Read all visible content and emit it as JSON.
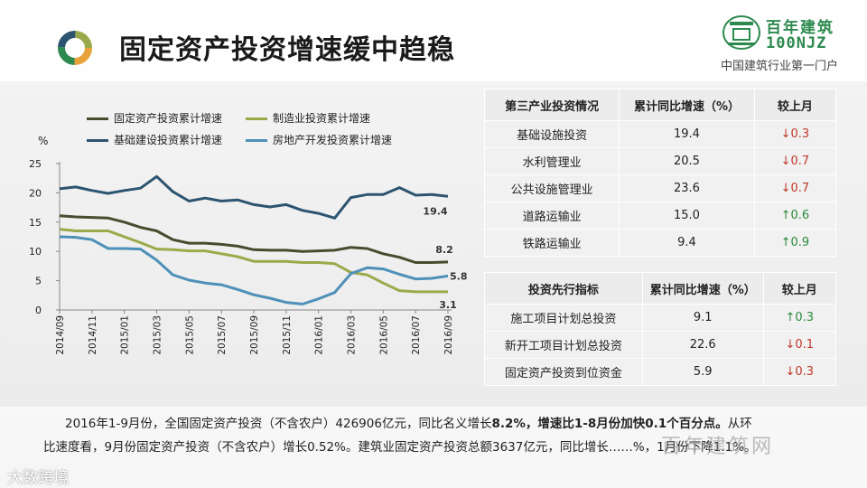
{
  "title": "固定资产投资增速缓中趋稳",
  "brand": {
    "cn": "百年建筑",
    "en": "100NJZ",
    "tagline": "中国建筑行业第一门户"
  },
  "chart_data": {
    "type": "line",
    "ylabel": "%",
    "ylim": [
      0,
      25
    ],
    "yticks": [
      "0",
      "5",
      "10",
      "15",
      "20",
      "25"
    ],
    "x": [
      "2014/09",
      "2014/10",
      "2014/11",
      "2014/12",
      "2015/01",
      "2015/02",
      "2015/03",
      "2015/04",
      "2015/05",
      "2015/06",
      "2015/07",
      "2015/08",
      "2015/09",
      "2015/10",
      "2015/11",
      "2015/12",
      "2016/01",
      "2016/02",
      "2016/03",
      "2016/04",
      "2016/05",
      "2016/06",
      "2016/07",
      "2016/08",
      "2016/09"
    ],
    "xtick_labels": [
      "2014/09",
      "2014/11",
      "2015/01",
      "2015/03",
      "2015/05",
      "2015/07",
      "2015/09",
      "2015/11",
      "2016/01",
      "2016/03",
      "2016/05",
      "2016/07",
      "2016/09"
    ],
    "legend": "top",
    "series": [
      {
        "name": "固定资产投资累计增速",
        "color": "#4a4a2e",
        "end_label": "8.2",
        "values": [
          16.1,
          15.9,
          15.8,
          15.7,
          15.0,
          14.1,
          13.5,
          12.0,
          11.4,
          11.4,
          11.2,
          10.9,
          10.3,
          10.2,
          10.2,
          10.0,
          10.1,
          10.2,
          10.7,
          10.5,
          9.6,
          9.0,
          8.1,
          8.1,
          8.2
        ]
      },
      {
        "name": "制造业投资累计增速",
        "color": "#9aaa4a",
        "end_label": "3.1",
        "values": [
          13.8,
          13.5,
          13.5,
          13.5,
          12.5,
          11.5,
          10.4,
          10.3,
          10.1,
          10.1,
          9.6,
          9.1,
          8.3,
          8.3,
          8.3,
          8.1,
          8.1,
          7.9,
          6.4,
          6.0,
          4.6,
          3.3,
          3.1,
          3.1,
          3.1
        ]
      },
      {
        "name": "基础建设投资累计增速",
        "color": "#2c5470",
        "end_label": "19.4",
        "values": [
          20.7,
          21.0,
          20.4,
          19.9,
          20.4,
          20.8,
          22.8,
          20.2,
          18.6,
          19.1,
          18.6,
          18.8,
          18.0,
          17.6,
          18.0,
          17.0,
          16.5,
          15.7,
          19.2,
          19.7,
          19.7,
          20.9,
          19.6,
          19.7,
          19.4
        ]
      },
      {
        "name": "房地产开发投资累计增速",
        "color": "#4e90b8",
        "end_label": "5.8",
        "values": [
          12.5,
          12.4,
          12.0,
          10.5,
          10.5,
          10.4,
          8.5,
          6.0,
          5.1,
          4.6,
          4.3,
          3.5,
          2.6,
          2.0,
          1.3,
          1.0,
          1.9,
          3.0,
          6.2,
          7.2,
          7.0,
          6.1,
          5.3,
          5.4,
          5.8
        ]
      }
    ]
  },
  "table1": {
    "headers": [
      "第三产业投资情况",
      "累计同比增速（%）",
      "较上月"
    ],
    "rows": [
      {
        "name": "基础设施投资",
        "value": "19.4",
        "change": "↓0.3",
        "dir": "down"
      },
      {
        "name": "水利管理业",
        "value": "20.5",
        "change": "↓0.7",
        "dir": "down"
      },
      {
        "name": "公共设施管理业",
        "value": "23.6",
        "change": "↓0.7",
        "dir": "down"
      },
      {
        "name": "道路运输业",
        "value": "15.0",
        "change": "↑0.6",
        "dir": "up"
      },
      {
        "name": "铁路运输业",
        "value": "9.4",
        "change": "↑0.9",
        "dir": "up"
      }
    ]
  },
  "table2": {
    "headers": [
      "投资先行指标",
      "累计同比增速（%）",
      "较上月"
    ],
    "rows": [
      {
        "name": "施工项目计划总投资",
        "value": "9.1",
        "change": "↑0.3",
        "dir": "up"
      },
      {
        "name": "新开工项目计划总投资",
        "value": "22.6",
        "change": "↓0.1",
        "dir": "down"
      },
      {
        "name": "固定资产投资到位资金",
        "value": "5.9",
        "change": "↓0.3",
        "dir": "down"
      }
    ]
  },
  "footer": {
    "line1_a": "2016年1-9月份，全国固定资产投资（不含农户）426906亿元，同比名义增长",
    "line1_b": "8.2%，增速比1-8月份加快0.1个百分点。",
    "line1_c": "从环",
    "line2": "比速度看，9月份固定资产投资（不含农户）增长0.52%。建筑业固定资产投资总额3637亿元，同比增长……%，1月份下降1.1%。"
  },
  "watermark": "百年建筑网",
  "corner_label": "大数跨境"
}
